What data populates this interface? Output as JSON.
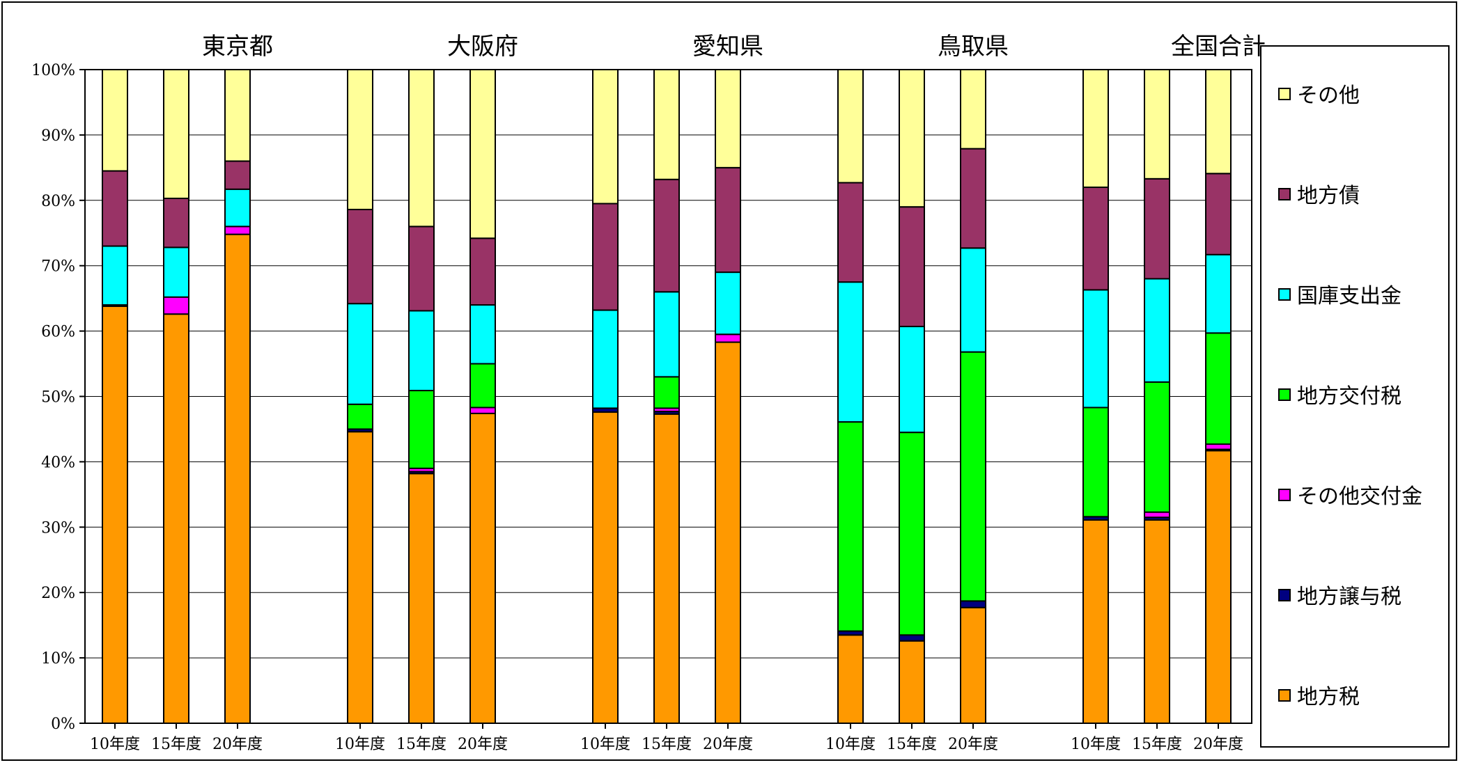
{
  "chart_data": {
    "type": "stacked-bar-100",
    "groups": [
      {
        "name": "東京都",
        "bars": [
          {
            "label": "10年度",
            "values": [
              63.8,
              0.0,
              0.2,
              0.0,
              9.0,
              11.5,
              15.5
            ]
          },
          {
            "label": "15年度",
            "values": [
              62.6,
              0.0,
              2.6,
              0.0,
              7.6,
              7.5,
              19.7
            ]
          },
          {
            "label": "20年度",
            "values": [
              74.8,
              0.0,
              1.2,
              0.0,
              5.7,
              4.3,
              14.0
            ]
          }
        ]
      },
      {
        "name": "大阪府",
        "bars": [
          {
            "label": "10年度",
            "values": [
              44.6,
              0.4,
              0.0,
              3.8,
              15.4,
              14.4,
              21.4
            ]
          },
          {
            "label": "15年度",
            "values": [
              38.2,
              0.3,
              0.5,
              11.9,
              12.2,
              12.9,
              24.0
            ]
          },
          {
            "label": "20年度",
            "values": [
              47.4,
              0.0,
              0.9,
              6.7,
              9.0,
              10.2,
              25.8
            ]
          }
        ]
      },
      {
        "name": "愛知県",
        "bars": [
          {
            "label": "10年度",
            "values": [
              47.6,
              0.6,
              0.0,
              0.0,
              15.0,
              16.3,
              20.5
            ]
          },
          {
            "label": "15年度",
            "values": [
              47.3,
              0.4,
              0.5,
              4.8,
              13.0,
              17.2,
              16.8
            ]
          },
          {
            "label": "20年度",
            "values": [
              58.3,
              0.0,
              1.2,
              0.0,
              9.5,
              16.0,
              15.0
            ]
          }
        ]
      },
      {
        "name": "鳥取県",
        "bars": [
          {
            "label": "10年度",
            "values": [
              13.5,
              0.6,
              0.0,
              32.0,
              21.4,
              15.2,
              17.3
            ]
          },
          {
            "label": "15年度",
            "values": [
              12.6,
              0.9,
              0.0,
              31.0,
              16.2,
              18.3,
              21.0
            ]
          },
          {
            "label": "20年度",
            "values": [
              17.7,
              1.0,
              0.0,
              38.1,
              15.9,
              15.2,
              12.1
            ]
          }
        ]
      },
      {
        "name": "全国合計",
        "bars": [
          {
            "label": "10年度",
            "values": [
              31.1,
              0.5,
              0.0,
              16.7,
              18.0,
              15.7,
              18.0
            ]
          },
          {
            "label": "15年度",
            "values": [
              31.1,
              0.4,
              0.8,
              19.9,
              15.8,
              15.3,
              16.7
            ]
          },
          {
            "label": "20年度",
            "values": [
              41.7,
              0.2,
              0.8,
              17.0,
              12.0,
              12.4,
              15.9
            ]
          }
        ]
      }
    ],
    "series": [
      {
        "name": "地方税",
        "color": "#FF9900"
      },
      {
        "name": "地方譲与税",
        "color": "#000080"
      },
      {
        "name": "その他交付金",
        "color": "#FF00FF"
      },
      {
        "name": "地方交付税",
        "color": "#00FF00"
      },
      {
        "name": "国庫支出金",
        "color": "#00FFFF"
      },
      {
        "name": "地方債",
        "color": "#993366"
      },
      {
        "name": "その他",
        "color": "#FFFF99"
      }
    ],
    "legend_order": [
      "その他",
      "地方債",
      "国庫支出金",
      "地方交付税",
      "その他交付金",
      "地方譲与税",
      "地方税"
    ],
    "yticks": [
      "0%",
      "10%",
      "20%",
      "30%",
      "40%",
      "50%",
      "60%",
      "70%",
      "80%",
      "90%",
      "100%"
    ],
    "ylim": [
      0,
      100
    ],
    "grid": true,
    "legend_position": "right"
  }
}
